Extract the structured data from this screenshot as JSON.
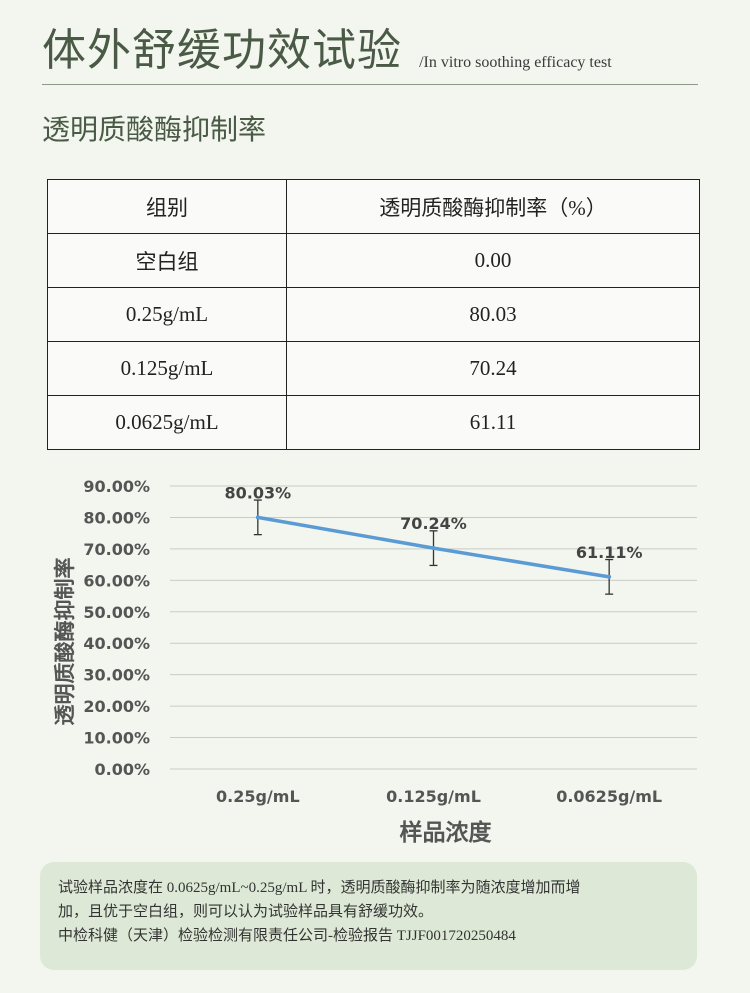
{
  "header": {
    "title": "体外舒缓功效试验",
    "subtitle": "/In vitro soothing efficacy test"
  },
  "section": {
    "title": "透明质酸酶抑制率"
  },
  "table": {
    "headers": [
      "组别",
      "透明质酸酶抑制率（%）"
    ],
    "rows": [
      [
        "空白组",
        "0.00"
      ],
      [
        "0.25g/mL",
        "80.03"
      ],
      [
        "0.125g/mL",
        "70.24"
      ],
      [
        "0.0625g/mL",
        "61.11"
      ]
    ]
  },
  "chart_data": {
    "type": "line",
    "categories": [
      "0.25g/mL",
      "0.125g/mL",
      "0.0625g/mL"
    ],
    "series": [
      {
        "values": [
          80.03,
          70.24,
          61.11
        ],
        "error": [
          5.5,
          5.5,
          5.5
        ],
        "data_labels": [
          "80.03%",
          "70.24%",
          "61.11%"
        ],
        "color": "#5b9bd5"
      }
    ],
    "xlabel": "样品浓度",
    "ylabel": "透明质酸酶抑制率",
    "ylim": [
      0,
      90
    ],
    "yticks": [
      0,
      10,
      20,
      30,
      40,
      50,
      60,
      70,
      80,
      90
    ],
    "ytick_labels": [
      "0.00%",
      "10.00%",
      "20.00%",
      "30.00%",
      "40.00%",
      "50.00%",
      "60.00%",
      "70.00%",
      "80.00%",
      "90.00%"
    ],
    "grid": true,
    "legend": "none"
  },
  "note": {
    "lines": [
      "试验样品浓度在  0.0625g/mL~0.25g/mL 时，透明质酸酶抑制率为随浓度增加而增",
      "加，且优于空白组，则可以认为试验样品具有舒缓功效。",
      "中检科健（天津）检验检测有限责任公司-检验报告  TJJF001720250484"
    ]
  },
  "colors": {
    "background": "#f2f6ee",
    "title": "#4a5a46",
    "line": "#5b9bd5",
    "note_bg": "#dde9d6"
  }
}
